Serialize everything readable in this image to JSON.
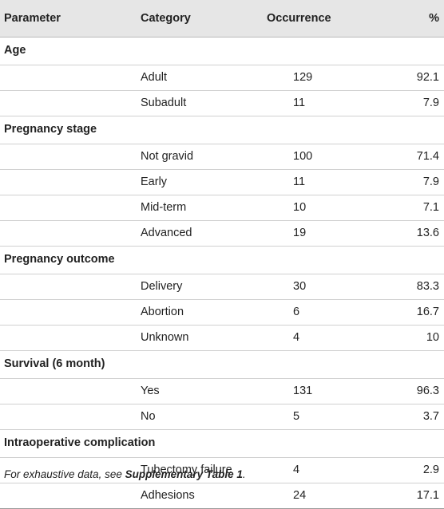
{
  "table": {
    "headers": [
      "Parameter",
      "Category",
      "Occurrence",
      "%"
    ],
    "groups": [
      {
        "parameter": "Age",
        "rows": [
          {
            "category": "Adult",
            "occurrence": "129",
            "percent": "92.1"
          },
          {
            "category": "Subadult",
            "occurrence": "11",
            "percent": "7.9"
          }
        ]
      },
      {
        "parameter": "Pregnancy stage",
        "rows": [
          {
            "category": "Not gravid",
            "occurrence": "100",
            "percent": "71.4"
          },
          {
            "category": "Early",
            "occurrence": "11",
            "percent": "7.9"
          },
          {
            "category": "Mid-term",
            "occurrence": "10",
            "percent": "7.1"
          },
          {
            "category": "Advanced",
            "occurrence": "19",
            "percent": "13.6"
          }
        ]
      },
      {
        "parameter": "Pregnancy outcome",
        "rows": [
          {
            "category": "Delivery",
            "occurrence": "30",
            "percent": "83.3"
          },
          {
            "category": "Abortion",
            "occurrence": "6",
            "percent": "16.7"
          },
          {
            "category": "Unknown",
            "occurrence": "4",
            "percent": "10"
          }
        ]
      },
      {
        "parameter": "Survival (6 month)",
        "rows": [
          {
            "category": "Yes",
            "occurrence": "131",
            "percent": "96.3"
          },
          {
            "category": "No",
            "occurrence": "5",
            "percent": "3.7"
          }
        ]
      },
      {
        "parameter": "Intraoperative complication",
        "rows": [
          {
            "category": "Tubectomy failure",
            "occurrence": "4",
            "percent": "2.9"
          },
          {
            "category": "Adhesions",
            "occurrence": "24",
            "percent": "17.1"
          }
        ]
      }
    ]
  },
  "footnote": {
    "prefix": "For exhaustive data, see ",
    "link": "Supplementary Table 1",
    "suffix": "."
  }
}
